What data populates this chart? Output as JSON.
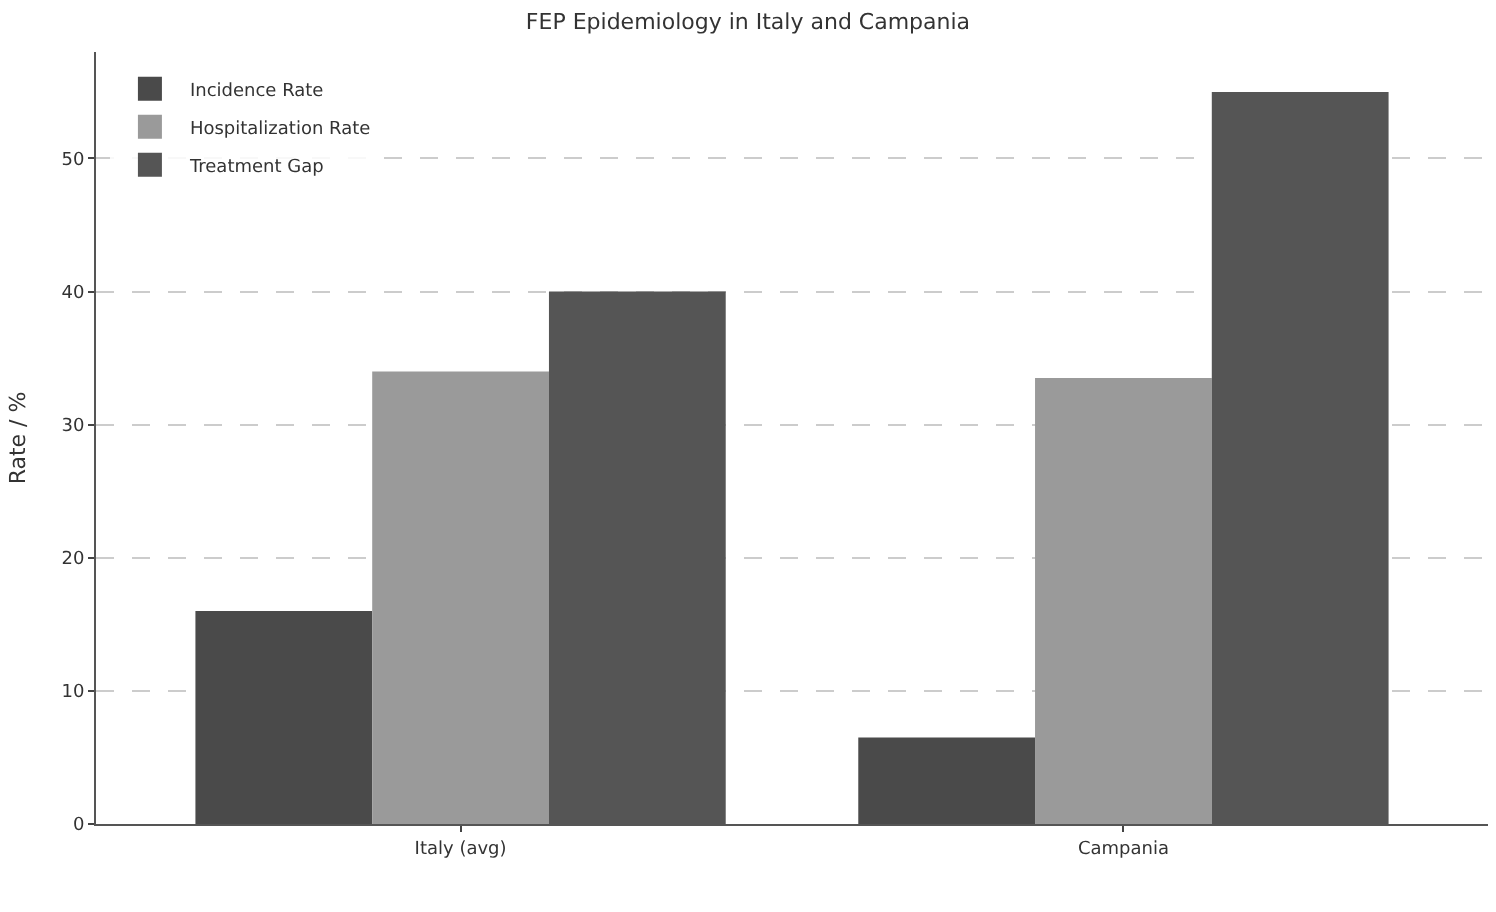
{
  "chart_data": {
    "type": "bar",
    "title": "FEP Epidemiology in Italy and Campania",
    "ylabel": "Rate / %",
    "categories": [
      "Italy (avg)",
      "Campania"
    ],
    "series": [
      {
        "name": "Incidence Rate",
        "color": "#4a4a4a",
        "values": [
          16,
          6.5
        ]
      },
      {
        "name": "Hospitalization Rate",
        "color": "#9a9a9a",
        "values": [
          34,
          33.5
        ]
      },
      {
        "name": "Treatment Gap",
        "color": "#555555",
        "values": [
          40,
          55
        ]
      }
    ],
    "ylim": [
      0,
      58
    ],
    "yticks": [
      0,
      10,
      20,
      30,
      40,
      50
    ],
    "grid": "y",
    "legend": "top left"
  }
}
